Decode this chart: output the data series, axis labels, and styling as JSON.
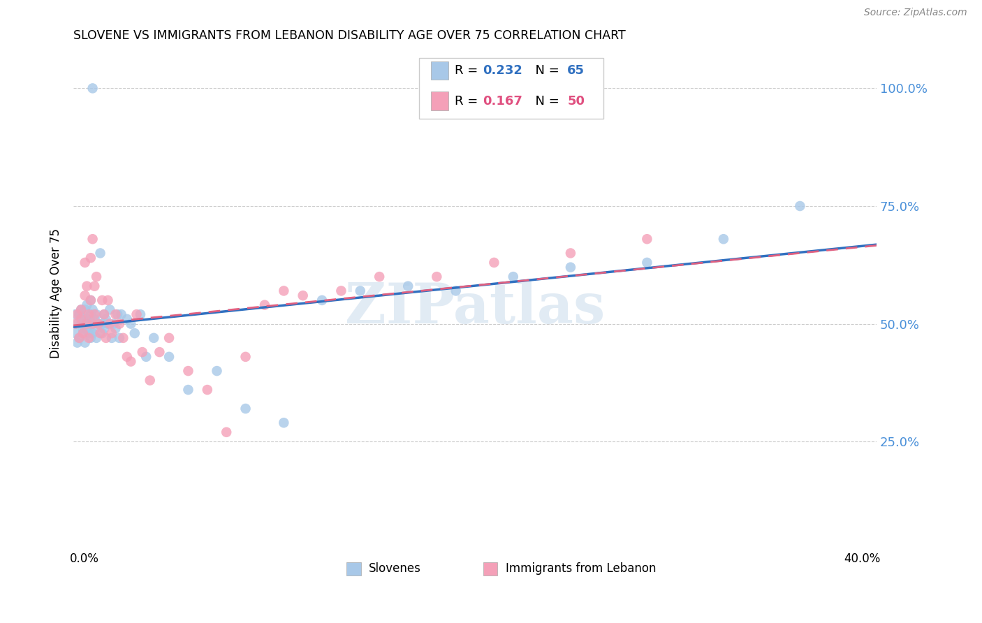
{
  "title": "SLOVENE VS IMMIGRANTS FROM LEBANON DISABILITY AGE OVER 75 CORRELATION CHART",
  "source": "Source: ZipAtlas.com",
  "ylabel": "Disability Age Over 75",
  "legend_label1": "Slovenes",
  "legend_label2": "Immigrants from Lebanon",
  "r1": 0.232,
  "n1": 65,
  "r2": 0.167,
  "n2": 50,
  "color_blue": "#a8c8e8",
  "color_pink": "#f4a0b8",
  "color_line_blue": "#3070c0",
  "color_line_pink": "#e06080",
  "watermark": "ZIPatlas",
  "xlim": [
    0.0,
    0.42
  ],
  "ylim": [
    0.05,
    1.08
  ],
  "ytick_values": [
    0.25,
    0.5,
    0.75,
    1.0
  ],
  "ytick_labels": [
    "25.0%",
    "50.0%",
    "75.0%",
    "100.0%"
  ],
  "slovene_x": [
    0.001,
    0.001,
    0.002,
    0.002,
    0.003,
    0.003,
    0.004,
    0.004,
    0.005,
    0.005,
    0.005,
    0.006,
    0.006,
    0.006,
    0.007,
    0.007,
    0.007,
    0.008,
    0.008,
    0.009,
    0.009,
    0.009,
    0.01,
    0.01,
    0.01,
    0.011,
    0.011,
    0.012,
    0.012,
    0.013,
    0.014,
    0.015,
    0.015,
    0.016,
    0.016,
    0.017,
    0.018,
    0.019,
    0.02,
    0.021,
    0.022,
    0.023,
    0.024,
    0.025,
    0.028,
    0.03,
    0.032,
    0.035,
    0.038,
    0.042,
    0.05,
    0.06,
    0.075,
    0.09,
    0.11,
    0.13,
    0.15,
    0.175,
    0.2,
    0.23,
    0.26,
    0.3,
    0.34,
    0.38,
    0.01
  ],
  "slovene_y": [
    0.48,
    0.52,
    0.5,
    0.46,
    0.52,
    0.47,
    0.5,
    0.53,
    0.49,
    0.51,
    0.48,
    0.5,
    0.53,
    0.46,
    0.49,
    0.51,
    0.54,
    0.5,
    0.48,
    0.52,
    0.47,
    0.55,
    0.5,
    0.48,
    0.53,
    0.51,
    0.49,
    0.52,
    0.47,
    0.5,
    0.65,
    0.5,
    0.48,
    0.52,
    0.49,
    0.51,
    0.5,
    0.53,
    0.47,
    0.5,
    0.49,
    0.52,
    0.47,
    0.52,
    0.51,
    0.5,
    0.48,
    0.52,
    0.43,
    0.47,
    0.43,
    0.36,
    0.4,
    0.32,
    0.29,
    0.55,
    0.57,
    0.58,
    0.57,
    0.6,
    0.62,
    0.63,
    0.68,
    0.75,
    1.0
  ],
  "lebanon_x": [
    0.001,
    0.002,
    0.003,
    0.004,
    0.004,
    0.005,
    0.006,
    0.006,
    0.007,
    0.007,
    0.008,
    0.008,
    0.009,
    0.009,
    0.01,
    0.01,
    0.011,
    0.011,
    0.012,
    0.013,
    0.014,
    0.015,
    0.016,
    0.017,
    0.018,
    0.019,
    0.02,
    0.022,
    0.024,
    0.026,
    0.028,
    0.03,
    0.033,
    0.036,
    0.04,
    0.045,
    0.05,
    0.06,
    0.07,
    0.08,
    0.09,
    0.1,
    0.11,
    0.12,
    0.14,
    0.16,
    0.19,
    0.22,
    0.26,
    0.3
  ],
  "lebanon_y": [
    0.5,
    0.52,
    0.47,
    0.51,
    0.53,
    0.48,
    0.63,
    0.56,
    0.5,
    0.58,
    0.52,
    0.47,
    0.64,
    0.55,
    0.5,
    0.68,
    0.52,
    0.58,
    0.6,
    0.5,
    0.48,
    0.55,
    0.52,
    0.47,
    0.55,
    0.5,
    0.48,
    0.52,
    0.5,
    0.47,
    0.43,
    0.42,
    0.52,
    0.44,
    0.38,
    0.44,
    0.47,
    0.4,
    0.36,
    0.27,
    0.43,
    0.54,
    0.57,
    0.56,
    0.57,
    0.6,
    0.6,
    0.63,
    0.65,
    0.68
  ]
}
